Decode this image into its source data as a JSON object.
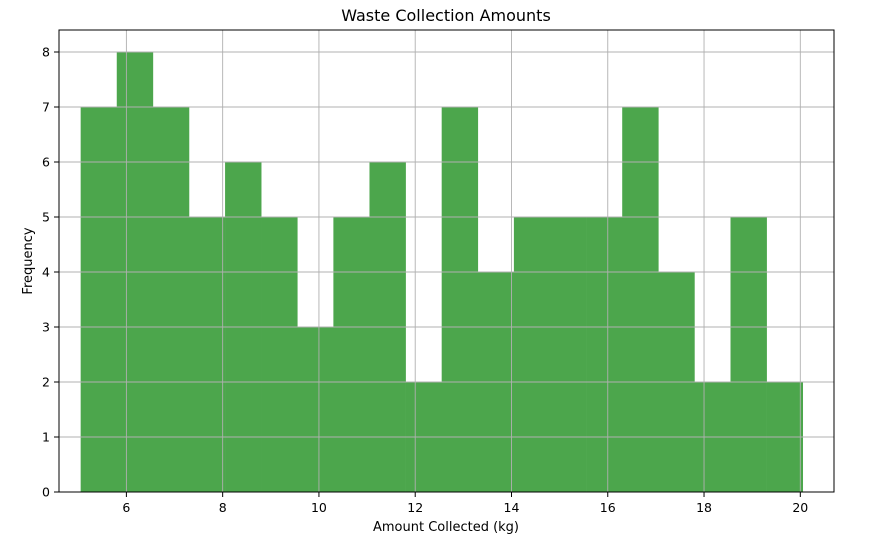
{
  "chart_data": {
    "type": "bar",
    "title": "Waste Collection Amounts",
    "xlabel": "Amount Collected (kg)",
    "ylabel": "Frequency",
    "bin_edges": [
      5.05,
      5.8,
      6.55,
      7.3,
      8.05,
      8.8,
      9.55,
      10.3,
      11.05,
      11.8,
      12.55,
      13.3,
      14.05,
      14.8,
      15.55,
      16.3,
      17.05,
      17.8,
      18.55,
      19.3,
      20.05
    ],
    "values": [
      7,
      8,
      7,
      5,
      6,
      5,
      3,
      5,
      6,
      2,
      7,
      4,
      5,
      5,
      5,
      7,
      4,
      2,
      5,
      2
    ],
    "xlim": [
      4.6,
      20.7
    ],
    "ylim": [
      0,
      8.4
    ],
    "x_ticks": [
      6,
      8,
      10,
      12,
      14,
      16,
      18,
      20
    ],
    "y_ticks": [
      0,
      1,
      2,
      3,
      4,
      5,
      6,
      7,
      8
    ],
    "grid": true,
    "bar_color": "#4ca64c"
  }
}
